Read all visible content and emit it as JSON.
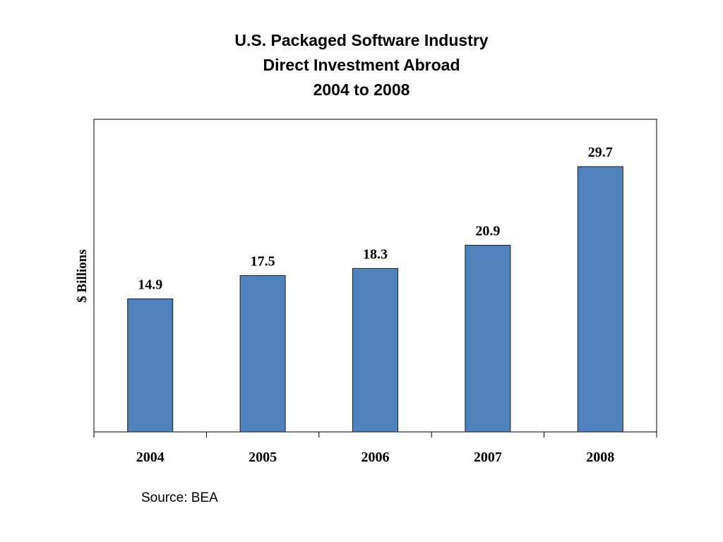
{
  "chart_data": {
    "type": "bar",
    "title_lines": [
      "U.S. Packaged Software Industry",
      "Direct Investment Abroad",
      "2004 to 2008"
    ],
    "categories": [
      "2004",
      "2005",
      "2006",
      "2007",
      "2008"
    ],
    "values": [
      14.9,
      17.5,
      18.3,
      20.9,
      29.7
    ],
    "data_labels": [
      "14.9",
      "17.5",
      "18.3",
      "20.9",
      "29.7"
    ],
    "xlabel": "",
    "ylabel": "$ Billions",
    "ylim": [
      0,
      35
    ],
    "grid": false,
    "bar_color": "#4f81bd",
    "bar_edge_color": "#1f1f1f"
  },
  "source": "Source: BEA"
}
